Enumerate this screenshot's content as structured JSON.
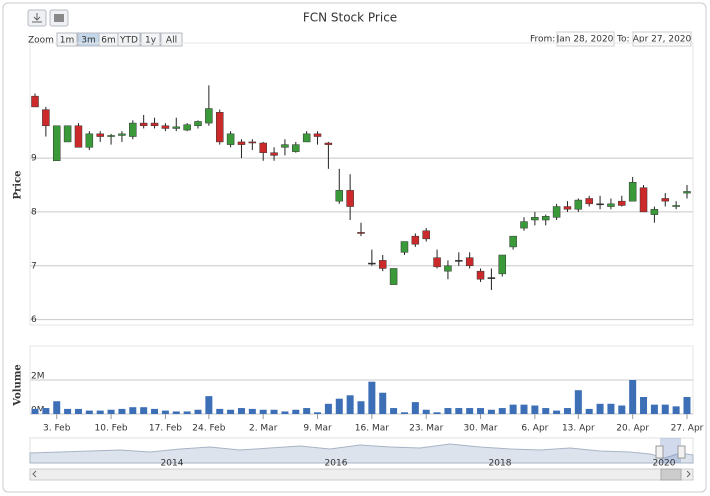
{
  "range_selector": {
    "zoom_label": "Zoom",
    "buttons": [
      "1m",
      "3m",
      "6m",
      "YTD",
      "1y",
      "All"
    ],
    "selected_button": 1,
    "from_label": "From:",
    "from_value": "Jan 28, 2020",
    "to_label": "To:",
    "to_value": "Apr 27, 2020"
  },
  "navigator": {
    "labels": [
      "2014",
      "2016",
      "2018",
      "2020"
    ]
  },
  "chart_data": {
    "type": "candlestick",
    "title": "FCN Stock Price",
    "y_label": "Price",
    "volume_label": "Volume",
    "up_color": "#3a9a3a",
    "down_color": "#cc2a2a",
    "flat_color": "#333333",
    "volume_color": "#3d6fb6",
    "x": [
      "2020-01-30",
      "2020-01-31",
      "2020-02-03",
      "2020-02-04",
      "2020-02-05",
      "2020-02-06",
      "2020-02-07",
      "2020-02-10",
      "2020-02-11",
      "2020-02-12",
      "2020-02-13",
      "2020-02-14",
      "2020-02-18",
      "2020-02-19",
      "2020-02-20",
      "2020-02-21",
      "2020-02-24",
      "2020-02-25",
      "2020-02-26",
      "2020-02-27",
      "2020-02-28",
      "2020-03-02",
      "2020-03-03",
      "2020-03-04",
      "2020-03-05",
      "2020-03-06",
      "2020-03-09",
      "2020-03-10",
      "2020-03-11",
      "2020-03-12",
      "2020-03-13",
      "2020-03-16",
      "2020-03-17",
      "2020-03-18",
      "2020-03-19",
      "2020-03-20",
      "2020-03-23",
      "2020-03-24",
      "2020-03-25",
      "2020-03-26",
      "2020-03-27",
      "2020-03-30",
      "2020-03-31",
      "2020-04-01",
      "2020-04-02",
      "2020-04-03",
      "2020-04-06",
      "2020-04-07",
      "2020-04-08",
      "2020-04-09",
      "2020-04-13",
      "2020-04-14",
      "2020-04-15",
      "2020-04-16",
      "2020-04-17",
      "2020-04-20",
      "2020-04-21",
      "2020-04-22",
      "2020-04-23",
      "2020-04-24",
      "2020-04-27"
    ],
    "open": [
      10.15,
      9.9,
      8.95,
      9.3,
      9.6,
      9.2,
      9.45,
      9.4,
      9.42,
      9.4,
      9.65,
      9.65,
      9.6,
      9.55,
      9.52,
      9.6,
      9.65,
      9.85,
      9.25,
      9.3,
      9.3,
      9.28,
      9.1,
      9.2,
      9.12,
      9.3,
      9.45,
      9.28,
      8.2,
      8.4,
      7.62,
      7.05,
      7.1,
      6.65,
      7.25,
      7.55,
      7.65,
      7.15,
      6.9,
      7.1,
      7.15,
      6.9,
      6.78,
      6.85,
      7.35,
      7.7,
      7.85,
      7.85,
      7.9,
      8.1,
      8.05,
      8.25,
      8.15,
      8.1,
      8.2,
      8.2,
      8.45,
      7.95,
      8.25,
      8.1,
      8.35
    ],
    "high": [
      10.2,
      9.95,
      9.6,
      9.6,
      9.65,
      9.5,
      9.5,
      9.45,
      9.5,
      9.7,
      9.8,
      9.75,
      9.65,
      9.75,
      9.65,
      9.7,
      10.35,
      9.9,
      9.5,
      9.35,
      9.35,
      9.3,
      9.2,
      9.35,
      9.3,
      9.5,
      9.5,
      9.3,
      8.8,
      8.7,
      7.8,
      7.3,
      7.2,
      6.95,
      7.45,
      7.6,
      7.7,
      7.3,
      7.1,
      7.25,
      7.25,
      6.95,
      6.95,
      7.2,
      7.55,
      7.9,
      8.0,
      7.95,
      8.15,
      8.2,
      8.25,
      8.3,
      8.3,
      8.25,
      8.3,
      8.65,
      8.5,
      8.1,
      8.35,
      8.2,
      8.5
    ],
    "low": [
      9.95,
      9.4,
      8.95,
      9.3,
      9.2,
      9.15,
      9.3,
      9.25,
      9.3,
      9.35,
      9.55,
      9.55,
      9.5,
      9.5,
      9.5,
      9.55,
      9.6,
      9.25,
      9.2,
      9.0,
      9.15,
      8.95,
      8.95,
      9.05,
      9.1,
      9.3,
      9.25,
      8.8,
      8.15,
      7.85,
      7.55,
      7.0,
      6.9,
      6.65,
      7.2,
      7.35,
      7.45,
      6.95,
      6.75,
      7.0,
      6.95,
      6.7,
      6.55,
      6.8,
      7.3,
      7.65,
      7.75,
      7.75,
      7.85,
      8.0,
      8.0,
      8.1,
      8.05,
      8.05,
      8.1,
      8.2,
      8.0,
      7.8,
      8.1,
      8.05,
      8.25
    ],
    "close": [
      9.95,
      9.6,
      9.6,
      9.6,
      9.2,
      9.45,
      9.4,
      9.42,
      9.45,
      9.65,
      9.6,
      9.6,
      9.55,
      9.58,
      9.62,
      9.68,
      9.92,
      9.3,
      9.45,
      9.25,
      9.28,
      9.1,
      9.05,
      9.25,
      9.25,
      9.45,
      9.4,
      9.25,
      8.4,
      8.1,
      7.6,
      7.05,
      6.95,
      6.95,
      7.45,
      7.4,
      7.5,
      6.98,
      7.0,
      7.1,
      7.0,
      6.75,
      6.78,
      7.2,
      7.55,
      7.82,
      7.9,
      7.92,
      8.1,
      8.05,
      8.22,
      8.15,
      8.15,
      8.15,
      8.12,
      8.55,
      8.0,
      8.05,
      8.2,
      8.12,
      8.38
    ],
    "volume": [
      300000,
      350000,
      750000,
      300000,
      300000,
      200000,
      200000,
      250000,
      300000,
      400000,
      400000,
      300000,
      200000,
      150000,
      150000,
      250000,
      1050000,
      300000,
      250000,
      350000,
      300000,
      250000,
      250000,
      150000,
      250000,
      350000,
      100000,
      600000,
      900000,
      1100000,
      750000,
      1900000,
      1250000,
      350000,
      100000,
      700000,
      250000,
      100000,
      350000,
      350000,
      350000,
      350000,
      250000,
      350000,
      550000,
      550000,
      500000,
      350000,
      200000,
      350000,
      1400000,
      300000,
      600000,
      600000,
      500000,
      2000000,
      1000000,
      550000,
      550000,
      450000,
      1000000
    ],
    "ylim": [
      5.9,
      11.1
    ],
    "yticks": [
      6,
      7,
      8,
      9
    ],
    "volume_ylim": [
      0,
      4000000
    ],
    "volume_yticks": [
      {
        "value": 0,
        "label": "0M"
      },
      {
        "value": 2000000,
        "label": "2M"
      }
    ],
    "xticks": [
      {
        "value": "2020-02-03",
        "label": "3. Feb"
      },
      {
        "value": "2020-02-10",
        "label": "10. Feb"
      },
      {
        "value": "2020-02-17",
        "label": "17. Feb"
      },
      {
        "value": "2020-02-24",
        "label": "24. Feb"
      },
      {
        "value": "2020-03-02",
        "label": "2. Mar"
      },
      {
        "value": "2020-03-09",
        "label": "9. Mar"
      },
      {
        "value": "2020-03-16",
        "label": "16. Mar"
      },
      {
        "value": "2020-03-23",
        "label": "23. Mar"
      },
      {
        "value": "2020-03-30",
        "label": "30. Mar"
      },
      {
        "value": "2020-04-06",
        "label": "6. Apr"
      },
      {
        "value": "2020-04-13",
        "label": "13. Apr"
      },
      {
        "value": "2020-04-20",
        "label": "20. Apr"
      },
      {
        "value": "2020-04-27",
        "label": "27. Apr"
      }
    ],
    "grid": true
  }
}
